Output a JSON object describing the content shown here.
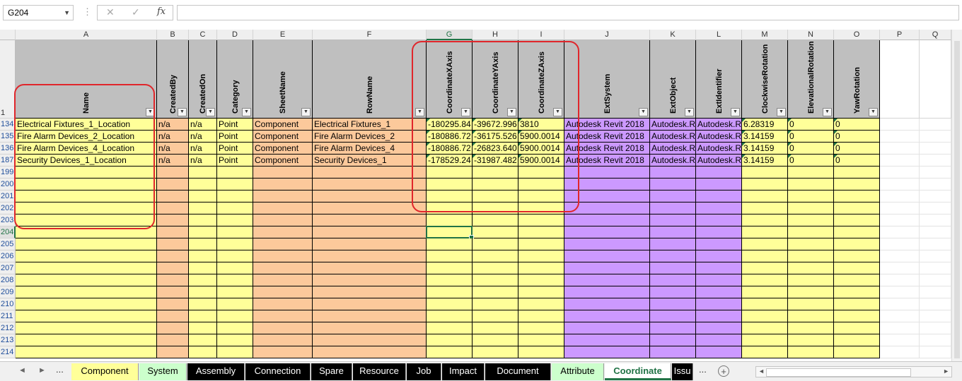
{
  "formula_bar": {
    "name_box": "G204",
    "cancel_icon": "✕",
    "enter_icon": "✓",
    "fx": "fx",
    "value": ""
  },
  "columns": [
    "A",
    "B",
    "C",
    "D",
    "E",
    "F",
    "G",
    "H",
    "I",
    "J",
    "K",
    "L",
    "M",
    "N",
    "O",
    "P",
    "Q"
  ],
  "selected_column": "G",
  "headers": [
    "Name",
    "CreatedBy",
    "CreatedOn",
    "Category",
    "SheetName",
    "RowName",
    "CoordinateXAxis",
    "CoordinateYAxis",
    "CoordinateZAxis",
    "ExtSystem",
    "ExtObject",
    "ExtIdentifier",
    "ClockwiseRotation",
    "ElevationalRotation",
    "YawRotation"
  ],
  "header_row_number": "1",
  "data_rows": [
    {
      "row": "134",
      "cells": [
        "Electrical Fixtures_1_Location",
        "n/a",
        "n/a",
        "Point",
        "Component",
        "Electrical Fixtures_1",
        "-180295.84",
        "-39672.996",
        "3810",
        "Autodesk Revit 2018",
        "Autodesk.R",
        "Autodesk.R",
        "6.28319",
        "0",
        "0"
      ]
    },
    {
      "row": "135",
      "cells": [
        "Fire Alarm Devices_2_Location",
        "n/a",
        "n/a",
        "Point",
        "Component",
        "Fire Alarm Devices_2",
        "-180886.72",
        "-36175.526",
        "5900.0014",
        "Autodesk Revit 2018",
        "Autodesk.R",
        "Autodesk.R",
        "3.14159",
        "0",
        "0"
      ]
    },
    {
      "row": "136",
      "cells": [
        "Fire Alarm Devices_4_Location",
        "n/a",
        "n/a",
        "Point",
        "Component",
        "Fire Alarm Devices_4",
        "-180886.72",
        "-26823.640",
        "5900.0014",
        "Autodesk Revit 2018",
        "Autodesk.R",
        "Autodesk.R",
        "3.14159",
        "0",
        "0"
      ]
    },
    {
      "row": "187",
      "cells": [
        "Security Devices_1_Location",
        "n/a",
        "n/a",
        "Point",
        "Component",
        "Security Devices_1",
        "-178529.24",
        "-31987.482",
        "5900.0014",
        "Autodesk Revit 2018",
        "Autodesk.R",
        "Autodesk.R",
        "3.14159",
        "0",
        "0"
      ]
    }
  ],
  "empty_rows": [
    "199",
    "200",
    "201",
    "202",
    "203",
    "204",
    "205",
    "206",
    "207",
    "208",
    "209",
    "210",
    "211",
    "212",
    "213",
    "214"
  ],
  "selected_row": "204",
  "colors": {
    "yellow": "#ffff99",
    "orange": "#fcc99b",
    "purple": "#cc99ff",
    "header_gray": "#bfbfbf",
    "tab_component": "#ffff99",
    "tab_system": "#ccffcc",
    "tab_dark": "#000000",
    "tab_attribute": "#ccffcc",
    "tab_coordinate": "#ccffcc",
    "accent": "#217346",
    "annotation": "#e0262b"
  },
  "tabs": [
    {
      "label": "Component",
      "style": "light",
      "bg": "#ffff99"
    },
    {
      "label": "System",
      "style": "light",
      "bg": "#ccffcc"
    },
    {
      "label": "Assembly",
      "style": "dark",
      "bg": "#000000"
    },
    {
      "label": "Connection",
      "style": "dark",
      "bg": "#000000"
    },
    {
      "label": "Spare",
      "style": "dark",
      "bg": "#000000"
    },
    {
      "label": "Resource",
      "style": "dark",
      "bg": "#000000"
    },
    {
      "label": "Job",
      "style": "dark",
      "bg": "#000000"
    },
    {
      "label": "Impact",
      "style": "dark",
      "bg": "#000000"
    },
    {
      "label": "Document",
      "style": "dark",
      "bg": "#000000"
    },
    {
      "label": "Attribute",
      "style": "light",
      "bg": "#ccffcc"
    },
    {
      "label": "Coordinate",
      "style": "active",
      "bg": "#ccffcc"
    },
    {
      "label": "Issu",
      "style": "dark",
      "bg": "#000000"
    }
  ],
  "tab_nav": {
    "prev": "◄",
    "next": "►",
    "more": "...",
    "more_right": "...",
    "add": "+"
  }
}
